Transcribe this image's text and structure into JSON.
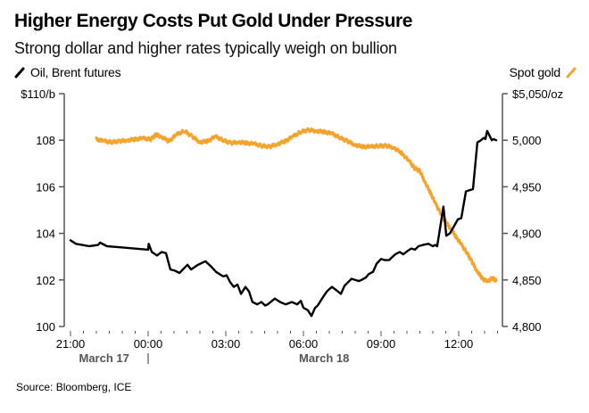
{
  "header": {
    "title": "Higher Energy Costs Put Gold Under Pressure",
    "subtitle": "Strong dollar and higher rates typically weigh on bullion"
  },
  "legend": {
    "left_label": "Oil, Brent futures",
    "right_label": "Spot gold",
    "left_icon": "line-swatch-black-icon",
    "right_icon": "line-swatch-orange-icon"
  },
  "source": "Source: Bloomberg, ICE",
  "colors": {
    "oil": "#000000",
    "gold": "#f5a32a",
    "axis": "#555555"
  },
  "chart_data": {
    "type": "line",
    "title": "Higher Energy Costs Put Gold Under Pressure",
    "subtitle": "Strong dollar and higher rates typically weigh on bullion",
    "xlabel": "",
    "x_unit": "hours since March 17 21:00",
    "xlim": [
      0,
      14.5
    ],
    "x_ticks": [
      {
        "h": 0,
        "label": "21:00"
      },
      {
        "h": 3,
        "label": "00:00"
      },
      {
        "h": 6,
        "label": "03:00"
      },
      {
        "h": 9,
        "label": "06:00"
      },
      {
        "h": 12,
        "label": "09:00"
      },
      {
        "h": 15,
        "label": "12:00"
      }
    ],
    "date_labels": [
      {
        "h": 1.3,
        "label": "March 17"
      },
      {
        "h": 9.8,
        "label": "March 18"
      }
    ],
    "date_divider_h": 3,
    "y_left": {
      "label": "$110/b",
      "ylim": [
        100,
        110
      ],
      "ticks": [
        {
          "v": 110,
          "label": "$110/b"
        },
        {
          "v": 108,
          "label": "108"
        },
        {
          "v": 106,
          "label": "106"
        },
        {
          "v": 104,
          "label": "104"
        },
        {
          "v": 102,
          "label": "102"
        },
        {
          "v": 100,
          "label": "100"
        }
      ]
    },
    "y_right": {
      "label": "$5,050/oz",
      "ylim": [
        4800,
        5050
      ],
      "ticks": [
        {
          "v": 5050,
          "label": "$5,050/oz"
        },
        {
          "v": 5000,
          "label": "5,000"
        },
        {
          "v": 4950,
          "label": "4,950"
        },
        {
          "v": 4900,
          "label": "4,900"
        },
        {
          "v": 4850,
          "label": "4,850"
        },
        {
          "v": 4800,
          "label": "4,800"
        }
      ]
    },
    "grid": false,
    "legend_position": "top",
    "series": [
      {
        "name": "Oil, Brent futures",
        "axis": "left",
        "color": "#000000",
        "x": [
          0,
          0.2,
          0.45,
          0.72,
          1.07,
          1.14,
          1.41,
          3.0,
          3.02,
          3.14,
          3.34,
          3.52,
          3.69,
          3.86,
          4.03,
          4.21,
          4.52,
          4.66,
          4.93,
          5.21,
          5.41,
          5.62,
          5.9,
          6.03,
          6.17,
          6.31,
          6.45,
          6.59,
          6.76,
          6.9,
          7.03,
          7.21,
          7.38,
          7.52,
          7.62,
          7.9,
          8.1,
          8.31,
          8.55,
          8.76,
          8.9,
          9.0,
          9.17,
          9.31,
          9.45,
          9.55,
          9.72,
          9.9,
          10.1,
          10.28,
          10.45,
          10.59,
          10.86,
          11.14,
          11.24,
          11.41,
          11.52,
          11.69,
          11.83,
          12.0,
          12.14,
          12.31,
          12.45,
          12.55,
          12.72,
          12.86,
          13.03,
          13.17,
          13.31,
          13.45,
          13.62,
          13.83,
          14.0,
          14.1,
          14.17,
          14.41,
          14.52,
          14.66,
          14.79,
          14.97,
          15.1,
          15.28,
          15.41,
          15.55,
          15.72,
          15.86,
          15.97,
          16.03,
          16.1,
          16.28,
          16.34,
          16.45
        ],
        "values": [
          103.7,
          103.55,
          103.5,
          103.45,
          103.5,
          103.6,
          103.45,
          103.3,
          103.55,
          103.2,
          103.05,
          103.2,
          103.15,
          102.45,
          102.4,
          102.3,
          102.65,
          102.45,
          102.65,
          102.8,
          102.6,
          102.35,
          102.15,
          102.2,
          101.9,
          101.7,
          101.8,
          101.4,
          101.7,
          101.5,
          101.05,
          100.95,
          101.05,
          100.9,
          100.95,
          101.2,
          101.05,
          100.95,
          101.05,
          100.95,
          101.1,
          100.8,
          100.7,
          100.45,
          100.8,
          100.9,
          101.2,
          101.5,
          101.7,
          101.55,
          101.4,
          101.75,
          102.05,
          101.95,
          102.0,
          102.1,
          102.25,
          102.35,
          102.7,
          102.9,
          102.85,
          102.85,
          103.0,
          103.1,
          103.2,
          103.1,
          103.25,
          103.35,
          103.3,
          103.45,
          103.5,
          103.55,
          103.45,
          103.5,
          103.45,
          105.15,
          103.9,
          104.0,
          104.25,
          104.6,
          104.65,
          105.8,
          105.85,
          105.9,
          107.9,
          108.0,
          108.1,
          108.05,
          108.4,
          108.0,
          108.05,
          108.0
        ]
      },
      {
        "name": "Spot gold",
        "axis": "right",
        "color": "#f5a32a",
        "x": [
          1.0,
          1.3,
          1.6,
          1.9,
          2.2,
          2.5,
          2.8,
          3.1,
          3.3,
          3.5,
          3.8,
          4.1,
          4.4,
          4.7,
          5.0,
          5.3,
          5.6,
          5.9,
          6.2,
          6.5,
          6.8,
          7.1,
          7.4,
          7.7,
          8.0,
          8.3,
          8.6,
          8.9,
          9.2,
          9.5,
          9.8,
          10.1,
          10.4,
          10.7,
          11.0,
          11.3,
          11.6,
          11.9,
          12.2,
          12.5,
          12.8,
          13.1,
          13.3,
          13.5,
          13.7,
          13.9,
          14.1,
          14.3,
          14.5,
          14.7,
          14.9,
          15.1,
          15.3,
          15.5,
          15.7,
          15.9,
          16.1,
          16.3,
          16.45
        ],
        "values": [
          5001,
          4999,
          4998,
          4999,
          5000,
          5001,
          5002,
          5001,
          5006,
          5004,
          4999,
          5006,
          5010,
          5004,
          4998,
          4999,
          5004,
          5000,
          4997,
          4998,
          4997,
          4996,
          4994,
          4993,
          4996,
          4999,
          5004,
          5009,
          5011,
          5010,
          5009,
          5007,
          5003,
          4999,
          4995,
          4993,
          4993,
          4994,
          4994,
          4992,
          4986,
          4977,
          4970,
          4967,
          4955,
          4944,
          4932,
          4922,
          4912,
          4905,
          4896,
          4888,
          4880,
          4870,
          4860,
          4852,
          4848,
          4852,
          4849
        ]
      }
    ]
  }
}
